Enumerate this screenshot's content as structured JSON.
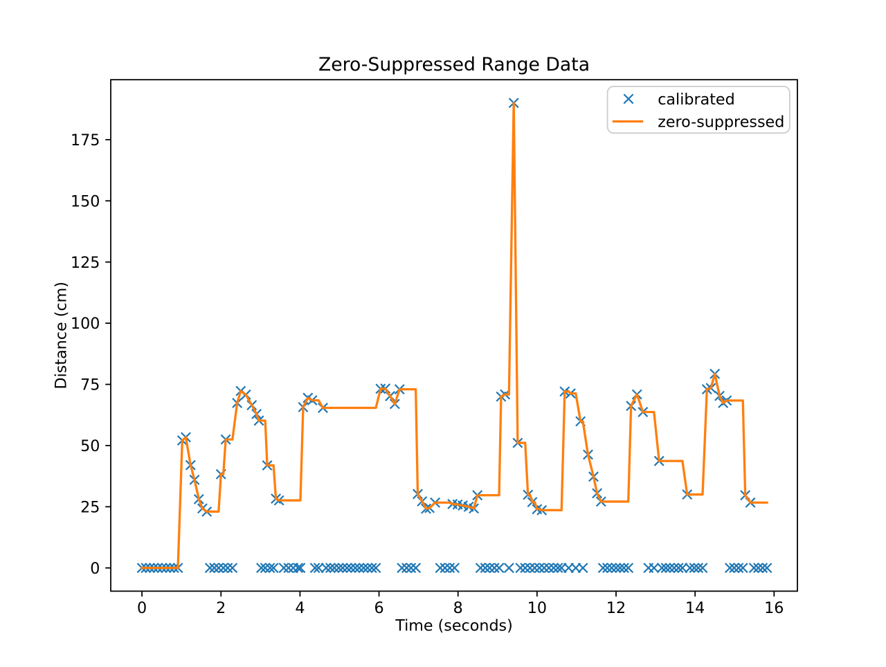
{
  "figure": {
    "background": "#ffffff"
  },
  "chart_data": {
    "type": "line",
    "title": "Zero-Suppressed Range Data",
    "xlabel": "Time (seconds)",
    "ylabel": "Distance (cm)",
    "xlim": [
      -0.79,
      16.59
    ],
    "ylim": [
      -9.5,
      199.5
    ],
    "xticks": [
      0,
      2,
      4,
      6,
      8,
      10,
      12,
      14,
      16
    ],
    "yticks": [
      0,
      25,
      50,
      75,
      100,
      125,
      150,
      175
    ],
    "grid": false,
    "legend": {
      "position": "upper right",
      "entries": [
        {
          "label": "calibrated",
          "type": "marker-x",
          "color": "#1f77b4"
        },
        {
          "label": "zero-suppressed",
          "type": "line",
          "color": "#ff7f0e"
        }
      ]
    },
    "x": [
      0.0,
      0.1,
      0.2,
      0.3,
      0.4,
      0.51,
      0.61,
      0.71,
      0.81,
      0.91,
      1.02,
      1.11,
      1.23,
      1.33,
      1.44,
      1.53,
      1.64,
      1.72,
      1.83,
      1.94,
      2.0,
      2.06,
      2.12,
      2.17,
      2.29,
      2.41,
      2.5,
      2.63,
      2.78,
      2.9,
      2.96,
      3.02,
      3.12,
      3.17,
      3.24,
      3.33,
      3.39,
      3.47,
      3.59,
      3.71,
      3.83,
      3.95,
      4.01,
      4.08,
      4.2,
      4.31,
      4.38,
      4.47,
      4.58,
      4.66,
      4.77,
      4.87,
      4.98,
      5.08,
      5.19,
      5.29,
      5.4,
      5.5,
      5.61,
      5.71,
      5.82,
      5.92,
      6.04,
      6.16,
      6.28,
      6.4,
      6.52,
      6.58,
      6.7,
      6.81,
      6.93,
      6.98,
      7.09,
      7.19,
      7.28,
      7.42,
      7.55,
      7.67,
      7.79,
      7.86,
      7.91,
      7.99,
      8.12,
      8.27,
      8.4,
      8.49,
      8.57,
      8.69,
      8.8,
      8.92,
      9.04,
      9.09,
      9.19,
      9.29,
      9.41,
      9.51,
      9.58,
      9.7,
      9.77,
      9.82,
      9.88,
      9.94,
      10.0,
      10.06,
      10.12,
      10.18,
      10.3,
      10.42,
      10.53,
      10.62,
      10.7,
      10.8,
      10.85,
      10.98,
      11.1,
      11.16,
      11.29,
      11.43,
      11.52,
      11.62,
      11.67,
      11.78,
      11.89,
      12.0,
      12.1,
      12.2,
      12.31,
      12.38,
      12.53,
      12.68,
      12.82,
      12.96,
      13.09,
      13.16,
      13.26,
      13.36,
      13.47,
      13.58,
      13.68,
      13.8,
      13.87,
      13.98,
      14.08,
      14.19,
      14.3,
      14.4,
      14.5,
      14.62,
      14.71,
      14.8,
      14.88,
      14.99,
      15.1,
      15.21,
      15.27,
      15.4,
      15.49,
      15.6,
      15.71,
      15.82
    ],
    "series": [
      {
        "name": "calibrated",
        "style": "marker-x",
        "color": "#1f77b4",
        "values": [
          0.0,
          0.0,
          0.0,
          0.0,
          0.0,
          0.0,
          0.0,
          0.0,
          0.0,
          0.0,
          52.1,
          53.4,
          42.0,
          36.0,
          28.1,
          24.3,
          23.0,
          0.0,
          0.0,
          0.0,
          38.3,
          0.0,
          52.5,
          0.0,
          0.0,
          67.4,
          72.3,
          70.8,
          66.5,
          62.9,
          60.2,
          0.0,
          0.0,
          41.9,
          0.0,
          0.0,
          28.3,
          27.6,
          0.0,
          0.0,
          0.0,
          0.0,
          0.0,
          65.7,
          69.5,
          68.5,
          0.0,
          0.0,
          65.4,
          0.0,
          0.0,
          0.0,
          0.0,
          0.0,
          0.0,
          0.0,
          0.0,
          0.0,
          0.0,
          0.0,
          0.0,
          0.0,
          73.2,
          73.3,
          70.2,
          67.0,
          73.0,
          0.0,
          0.0,
          0.0,
          0.0,
          30.2,
          27.2,
          24.2,
          24.5,
          26.7,
          0.0,
          0.0,
          0.0,
          26.1,
          0.0,
          25.9,
          25.5,
          25.0,
          24.3,
          29.7,
          0.0,
          0.0,
          0.0,
          0.0,
          0.0,
          70.0,
          70.9,
          0.0,
          190.0,
          51.1,
          0.0,
          0.0,
          29.9,
          0.0,
          26.9,
          0.0,
          24.0,
          0.0,
          23.6,
          0.0,
          0.0,
          0.0,
          0.0,
          0.0,
          72.1,
          0.0,
          71.3,
          0.0,
          59.9,
          0.0,
          46.3,
          37.3,
          30.5,
          27.1,
          0.0,
          0.0,
          0.0,
          0.0,
          0.0,
          0.0,
          0.0,
          66.2,
          70.9,
          63.7,
          0.0,
          0.0,
          43.7,
          0.0,
          0.0,
          0.0,
          0.0,
          0.0,
          0.0,
          30.0,
          0.0,
          0.0,
          0.0,
          0.0,
          73.0,
          73.5,
          79.3,
          70.3,
          67.4,
          68.4,
          0.0,
          0.0,
          0.0,
          0.0,
          29.7,
          26.7,
          0.0,
          0.0,
          0.0,
          0.0
        ]
      },
      {
        "name": "zero-suppressed",
        "style": "line",
        "color": "#ff7f0e",
        "values": [
          0.0,
          0.0,
          0.0,
          0.0,
          0.0,
          0.0,
          0.0,
          0.0,
          0.0,
          0.0,
          52.1,
          53.4,
          42.0,
          36.0,
          28.1,
          24.3,
          23.0,
          23.0,
          23.0,
          23.0,
          38.3,
          38.3,
          52.5,
          52.5,
          52.5,
          67.4,
          72.3,
          70.8,
          66.5,
          62.9,
          60.2,
          60.2,
          60.2,
          41.9,
          41.9,
          41.9,
          28.3,
          27.6,
          27.6,
          27.6,
          27.6,
          27.6,
          27.6,
          65.7,
          69.5,
          68.5,
          68.5,
          68.5,
          65.4,
          65.4,
          65.4,
          65.4,
          65.4,
          65.4,
          65.4,
          65.4,
          65.4,
          65.4,
          65.4,
          65.4,
          65.4,
          65.4,
          73.2,
          73.3,
          70.2,
          67.0,
          73.0,
          73.0,
          73.0,
          73.0,
          73.0,
          30.2,
          27.2,
          24.2,
          24.5,
          26.7,
          26.7,
          26.7,
          26.7,
          26.1,
          26.1,
          25.9,
          25.5,
          25.0,
          24.3,
          29.7,
          29.7,
          29.7,
          29.7,
          29.7,
          29.7,
          70.0,
          70.9,
          70.9,
          190.0,
          51.1,
          51.1,
          51.1,
          29.9,
          29.9,
          26.9,
          26.9,
          24.0,
          24.0,
          23.6,
          23.6,
          23.6,
          23.6,
          23.6,
          23.6,
          72.1,
          72.1,
          71.3,
          71.3,
          59.9,
          59.9,
          46.3,
          37.3,
          30.5,
          27.1,
          27.1,
          27.1,
          27.1,
          27.1,
          27.1,
          27.1,
          27.1,
          66.2,
          70.9,
          63.7,
          63.7,
          63.7,
          43.7,
          43.7,
          43.7,
          43.7,
          43.7,
          43.7,
          43.7,
          30.0,
          30.0,
          30.0,
          30.0,
          30.0,
          73.0,
          73.5,
          79.3,
          70.3,
          67.4,
          68.4,
          68.4,
          68.4,
          68.4,
          68.4,
          29.7,
          26.7,
          26.7,
          26.7,
          26.7,
          26.7
        ]
      }
    ]
  }
}
